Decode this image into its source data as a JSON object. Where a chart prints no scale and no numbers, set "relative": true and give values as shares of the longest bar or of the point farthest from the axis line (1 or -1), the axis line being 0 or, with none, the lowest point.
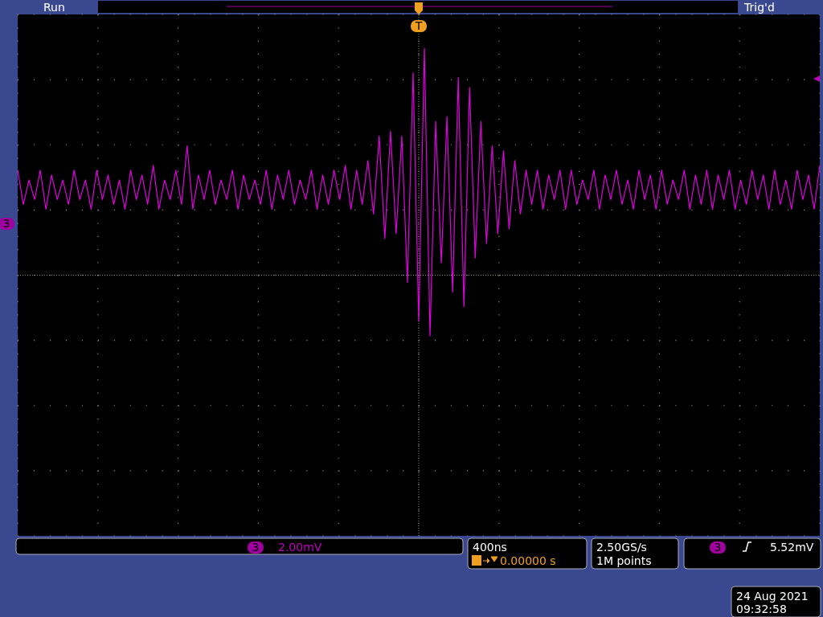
{
  "chart_data": {
    "type": "line",
    "relative": true,
    "grid": true,
    "categories": [
      null,
      null,
      null,
      null,
      null,
      null,
      null,
      null,
      null,
      null,
      null,
      null,
      null,
      null,
      null,
      null,
      null,
      null,
      null,
      null,
      null,
      null,
      null,
      null,
      null,
      null,
      null,
      null,
      null,
      null,
      null,
      null,
      null,
      null,
      null,
      null,
      null,
      null,
      null,
      null,
      null,
      null,
      null,
      null,
      null,
      null,
      null,
      null,
      null,
      null,
      null,
      null,
      null,
      null,
      null,
      null,
      null,
      null,
      null,
      null,
      null,
      null,
      null,
      null,
      null,
      null,
      null,
      null,
      null,
      null,
      null,
      null,
      null,
      null,
      null,
      null,
      null,
      null,
      null,
      null,
      null,
      null,
      null,
      null,
      null,
      null,
      null,
      null,
      null,
      null,
      null,
      null,
      null,
      null,
      null,
      null,
      null,
      null,
      null,
      null,
      null,
      null,
      null,
      null,
      null,
      null,
      null,
      null,
      null,
      null,
      null,
      null,
      null,
      null,
      null,
      null,
      null,
      null,
      null,
      null,
      null,
      null,
      null,
      null,
      null,
      null,
      null,
      null,
      null,
      null,
      null,
      null,
      null,
      null,
      null,
      null,
      null,
      null,
      null,
      null,
      null,
      null,
      null
    ],
    "series": [
      {
        "color": "#e000e0",
        "values": [
          0.75,
          0.68,
          0.73,
          0.69,
          0.75,
          0.67,
          0.74,
          0.69,
          0.73,
          0.68,
          0.75,
          0.69,
          0.73,
          0.67,
          0.75,
          0.69,
          0.74,
          0.68,
          0.73,
          0.67,
          0.75,
          0.69,
          0.74,
          0.68,
          0.76,
          0.67,
          0.73,
          0.69,
          0.75,
          0.68,
          0.8,
          0.67,
          0.74,
          0.69,
          0.75,
          0.68,
          0.73,
          0.69,
          0.75,
          0.67,
          0.74,
          0.69,
          0.73,
          0.68,
          0.75,
          0.67,
          0.74,
          0.69,
          0.75,
          0.68,
          0.73,
          0.69,
          0.75,
          0.67,
          0.74,
          0.68,
          0.75,
          0.69,
          0.76,
          0.67,
          0.75,
          0.68,
          0.77,
          0.66,
          0.82,
          0.61,
          0.83,
          0.62,
          0.82,
          0.52,
          0.95,
          0.44,
          1,
          0.41,
          0.85,
          0.56,
          0.86,
          0.5,
          0.94,
          0.47,
          0.92,
          0.57,
          0.85,
          0.6,
          0.8,
          0.62,
          0.79,
          0.63,
          0.77,
          0.66,
          0.75,
          0.68,
          0.75,
          0.67,
          0.74,
          0.69,
          0.75,
          0.67,
          0.75,
          0.68,
          0.73,
          0.69,
          0.75,
          0.67,
          0.74,
          0.69,
          0.75,
          0.68,
          0.73,
          0.67,
          0.75,
          0.69,
          0.74,
          0.67,
          0.75,
          0.68,
          0.73,
          0.69,
          0.75,
          0.67,
          0.74,
          0.68,
          0.75,
          0.67,
          0.74,
          0.69,
          0.75,
          0.67,
          0.73,
          0.68,
          0.75,
          0.69,
          0.74,
          0.67,
          0.75,
          0.68,
          0.73,
          0.67,
          0.75,
          0.69,
          0.74,
          0.67,
          0.76
        ]
      }
    ],
    "annotations": [
      "Run",
      "Trig'd",
      "T",
      "3",
      "3",
      "2.00mV",
      "400ns",
      "0.00000 s",
      "2.50GS/s",
      "1M points",
      "3",
      "5.52mV",
      "24 Aug 2021",
      "09:32:58"
    ]
  }
}
